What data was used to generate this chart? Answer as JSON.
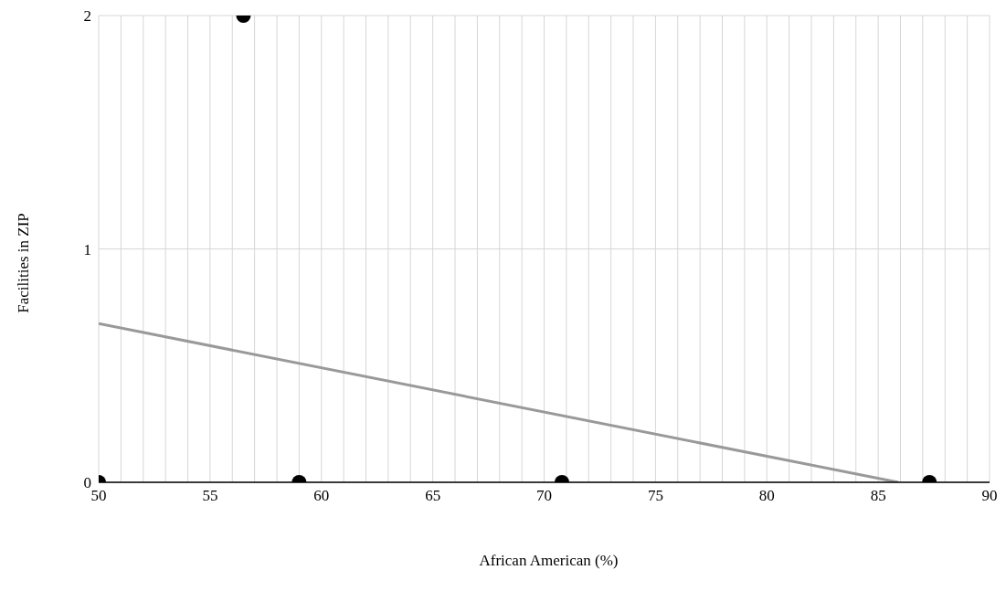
{
  "chart_data": {
    "type": "scatter",
    "xlabel": "African American (%)",
    "ylabel": "Facilities in ZIP",
    "series": [
      {
        "color": "#000000",
        "x": [
          50.0,
          56.5,
          59.0,
          70.8,
          87.3
        ],
        "values": [
          0,
          2,
          0,
          0,
          0
        ]
      },
      {
        "type": "line",
        "marker": "none",
        "color": "#999999",
        "x": [
          50,
          85.9
        ],
        "values": [
          0.68,
          0
        ]
      }
    ],
    "xlim": [
      50,
      90
    ],
    "xticks": [
      50,
      {
        "value": 51,
        "label": null
      },
      {
        "value": 52,
        "label": null
      },
      {
        "value": 53,
        "label": null
      },
      {
        "value": 54,
        "label": null
      },
      55,
      {
        "value": 56,
        "label": null
      },
      {
        "value": 57,
        "label": null
      },
      {
        "value": 58,
        "label": null
      },
      {
        "value": 59,
        "label": null
      },
      60,
      {
        "value": 61,
        "label": null
      },
      {
        "value": 62,
        "label": null
      },
      {
        "value": 63,
        "label": null
      },
      {
        "value": 64,
        "label": null
      },
      65,
      {
        "value": 66,
        "label": null
      },
      {
        "value": 67,
        "label": null
      },
      {
        "value": 68,
        "label": null
      },
      {
        "value": 69,
        "label": null
      },
      70,
      {
        "value": 71,
        "label": null
      },
      {
        "value": 72,
        "label": null
      },
      {
        "value": 73,
        "label": null
      },
      {
        "value": 74,
        "label": null
      },
      75,
      {
        "value": 76,
        "label": null
      },
      {
        "value": 77,
        "label": null
      },
      {
        "value": 78,
        "label": null
      },
      {
        "value": 79,
        "label": null
      },
      80,
      {
        "value": 81,
        "label": null
      },
      {
        "value": 82,
        "label": null
      },
      {
        "value": 83,
        "label": null
      },
      {
        "value": 84,
        "label": null
      },
      85,
      {
        "value": 86,
        "label": null
      },
      {
        "value": 87,
        "label": null
      },
      {
        "value": 88,
        "label": null
      },
      {
        "value": 89,
        "label": null
      },
      90
    ],
    "ylim": [
      0,
      2
    ],
    "yticks": [
      0,
      1,
      2
    ],
    "grid": true,
    "legend": false,
    "marker": "circle",
    "line_style": "solid"
  }
}
